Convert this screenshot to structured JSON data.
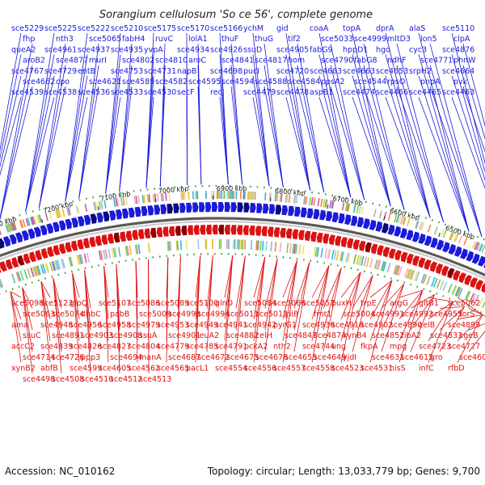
{
  "title": "Sorangium cellulosum 'So ce 56', complete genome",
  "accession": "Accession: NC_010162",
  "topology": "Topology: circular; Length: 13,033,779 bp; Genes: 9,700",
  "colors": {
    "forward": "#1a1adb",
    "reverse": "#dd1111",
    "backbone": "#8a8a8a",
    "ticks": "#2a9a2a"
  },
  "ticks": [
    {
      "label": "7300 kbp"
    },
    {
      "label": "7200 kbp"
    },
    {
      "label": "7100 kbp"
    },
    {
      "label": "7000 kbp"
    },
    {
      "label": "6900 kbp"
    },
    {
      "label": "6800 kbp"
    },
    {
      "label": "6700 kbp"
    },
    {
      "label": "6600 kbp"
    },
    {
      "label": "6500 kbp"
    },
    {
      "label": "6400 kbp"
    }
  ],
  "forward_genes": [
    {
      "label": "sce5229"
    },
    {
      "label": "sce5225"
    },
    {
      "label": "sce5222"
    },
    {
      "label": "sce5210"
    },
    {
      "label": "sce5175"
    },
    {
      "label": "sce5170"
    },
    {
      "label": "sce5166"
    },
    {
      "label": "ychM"
    },
    {
      "label": "gid"
    },
    {
      "label": "coaA"
    },
    {
      "label": "topA"
    },
    {
      "label": "dprA"
    },
    {
      "label": "alaS"
    },
    {
      "label": "sce5110"
    },
    {
      "label": "fhp"
    },
    {
      "label": "nth3"
    },
    {
      "label": "sce5065"
    },
    {
      "label": "fabH4"
    },
    {
      "label": "ruvC"
    },
    {
      "label": "lolA1"
    },
    {
      "label": "thuF"
    },
    {
      "label": "thuG"
    },
    {
      "label": "tif2"
    },
    {
      "label": "sce5033"
    },
    {
      "label": "sce4999"
    },
    {
      "label": "mltD3"
    },
    {
      "label": "lon5"
    },
    {
      "label": "clpA"
    },
    {
      "label": "queA2"
    },
    {
      "label": "sce4961"
    },
    {
      "label": "sce4937"
    },
    {
      "label": "sce4935"
    },
    {
      "label": "yvpA"
    },
    {
      "label": "sce4934"
    },
    {
      "label": "sce4926"
    },
    {
      "label": "ssuD"
    },
    {
      "label": "sce4905"
    },
    {
      "label": "fabG9"
    },
    {
      "label": "hppD1"
    },
    {
      "label": "hgo"
    },
    {
      "label": "cyc3"
    },
    {
      "label": "sce4876"
    },
    {
      "label": "aroB2"
    },
    {
      "label": "sce4877"
    },
    {
      "label": "murI"
    },
    {
      "label": "sce4802"
    },
    {
      "label": "sce4810"
    },
    {
      "label": "aroC"
    },
    {
      "label": "sce4841"
    },
    {
      "label": "sce4817"
    },
    {
      "label": "hom"
    },
    {
      "label": "sce4790"
    },
    {
      "label": "fabG8"
    },
    {
      "label": "ndhF"
    },
    {
      "label": "sce4771"
    },
    {
      "label": "phnW"
    },
    {
      "label": "sce4767"
    },
    {
      "label": "sce4729"
    },
    {
      "label": "entB"
    },
    {
      "label": "sce4753"
    },
    {
      "label": "sce4731"
    },
    {
      "label": "napB"
    },
    {
      "label": "sce4698"
    },
    {
      "label": "pucI"
    },
    {
      "label": "sce4720"
    },
    {
      "label": "sce4683"
    },
    {
      "label": "sce4663"
    },
    {
      "label": "sce4653"
    },
    {
      "label": "srpH2"
    },
    {
      "label": "sce4664"
    },
    {
      "label": "sce4662"
    },
    {
      "label": "cpo"
    },
    {
      "label": "sce4621"
    },
    {
      "label": "sce4589"
    },
    {
      "label": "sce4582"
    },
    {
      "label": "sce4595"
    },
    {
      "label": "sce4594"
    },
    {
      "label": "sce4588"
    },
    {
      "label": "sce4584"
    },
    {
      "label": "ppsA2"
    },
    {
      "label": "sce4544"
    },
    {
      "label": "rpsO"
    },
    {
      "label": "pnpA"
    },
    {
      "label": "pvk"
    },
    {
      "label": "sce4539"
    },
    {
      "label": "sce4538"
    },
    {
      "label": "sce4536"
    },
    {
      "label": "sce4533"
    },
    {
      "label": "sce4530"
    },
    {
      "label": "secF"
    },
    {
      "label": "recJ"
    },
    {
      "label": "sce4479"
    },
    {
      "label": "sce4478"
    },
    {
      "label": "aspB1"
    },
    {
      "label": "sce4474"
    },
    {
      "label": "sce4466"
    },
    {
      "label": "sce4465"
    },
    {
      "label": "sce4463"
    }
  ],
  "reverse_genes": [
    {
      "label": "sce5098"
    },
    {
      "label": "sce5123"
    },
    {
      "label": "glpQ"
    },
    {
      "label": "sce5107"
    },
    {
      "label": "sce5086"
    },
    {
      "label": "sce5089"
    },
    {
      "label": "sce5100"
    },
    {
      "label": "glnD"
    },
    {
      "label": "sce5084"
    },
    {
      "label": "sce5066"
    },
    {
      "label": "sce5057"
    },
    {
      "label": "puxH"
    },
    {
      "label": "trpE"
    },
    {
      "label": "argG"
    },
    {
      "label": "gltB1"
    },
    {
      "label": "sce5062"
    },
    {
      "label": "sce5063"
    },
    {
      "label": "sce5074"
    },
    {
      "label": "dhbC"
    },
    {
      "label": "pabB"
    },
    {
      "label": "sce5009"
    },
    {
      "label": "sce4998"
    },
    {
      "label": "sce4994"
    },
    {
      "label": "sce5011"
    },
    {
      "label": "sce5012"
    },
    {
      "label": "yliB"
    },
    {
      "label": "fmt1"
    },
    {
      "label": "sce5004"
    },
    {
      "label": "sce4991"
    },
    {
      "label": "sce4992"
    },
    {
      "label": "sce4955"
    },
    {
      "label": "torS"
    },
    {
      "label": "ama"
    },
    {
      "label": "sce4948"
    },
    {
      "label": "sce4956"
    },
    {
      "label": "sce4958"
    },
    {
      "label": "sce4979"
    },
    {
      "label": "sce4953"
    },
    {
      "label": "sce4949"
    },
    {
      "label": "sce4941"
    },
    {
      "label": "sce4942"
    },
    {
      "label": "pyrG1"
    },
    {
      "label": "sce4936"
    },
    {
      "label": "sce4916"
    },
    {
      "label": "sce4902"
    },
    {
      "label": "sce4890"
    },
    {
      "label": "celB"
    },
    {
      "label": "sce4899"
    },
    {
      "label": "ssuC"
    },
    {
      "label": "sce4891"
    },
    {
      "label": "sce4903"
    },
    {
      "label": "sce4908"
    },
    {
      "label": "ssuA"
    },
    {
      "label": "sce4901"
    },
    {
      "label": "leuA2"
    },
    {
      "label": "sce4882"
    },
    {
      "label": "celH"
    },
    {
      "label": "sce4847"
    },
    {
      "label": "sce4874"
    },
    {
      "label": "xynB4"
    },
    {
      "label": "sce4852"
    },
    {
      "label": "ribA2"
    },
    {
      "label": "sce4833"
    },
    {
      "label": "cgeB"
    },
    {
      "label": "accC2"
    },
    {
      "label": "sce4839"
    },
    {
      "label": "sce4826"
    },
    {
      "label": "sce4827"
    },
    {
      "label": "sce4804"
    },
    {
      "label": "sce4779"
    },
    {
      "label": "sce4785"
    },
    {
      "label": "sce4791"
    },
    {
      "label": "pckA2"
    },
    {
      "label": "nth2"
    },
    {
      "label": "sce4744"
    },
    {
      "label": "ung"
    },
    {
      "label": "fkpA"
    },
    {
      "label": "mpg"
    },
    {
      "label": "sce4723"
    },
    {
      "label": "sce4727"
    },
    {
      "label": "sce4714"
    },
    {
      "label": "sce4726"
    },
    {
      "label": "ppp3"
    },
    {
      "label": "sce4694"
    },
    {
      "label": "manA"
    },
    {
      "label": "sce4687"
    },
    {
      "label": "sce4672"
    },
    {
      "label": "sce4675"
    },
    {
      "label": "sce4676"
    },
    {
      "label": "sce4655"
    },
    {
      "label": "sce4649"
    },
    {
      "label": "yjdI"
    },
    {
      "label": "sce4631"
    },
    {
      "label": "sce4615"
    },
    {
      "label": "gro"
    },
    {
      "label": "sce4608"
    },
    {
      "label": "xynB2"
    },
    {
      "label": "abfB"
    },
    {
      "label": "sce4599"
    },
    {
      "label": "sce4605"
    },
    {
      "label": "sce4562"
    },
    {
      "label": "sce4565"
    },
    {
      "label": "pacL1"
    },
    {
      "label": "sce4554"
    },
    {
      "label": "sce4556"
    },
    {
      "label": "sce4557"
    },
    {
      "label": "sce4558"
    },
    {
      "label": "sce4523"
    },
    {
      "label": "sce4531"
    },
    {
      "label": "hisS"
    },
    {
      "label": "infC"
    },
    {
      "label": "rfbD"
    },
    {
      "label": "sce4498"
    },
    {
      "label": "sce4508"
    },
    {
      "label": "sce4510"
    },
    {
      "label": "sce4512"
    },
    {
      "label": "sce4513"
    }
  ]
}
